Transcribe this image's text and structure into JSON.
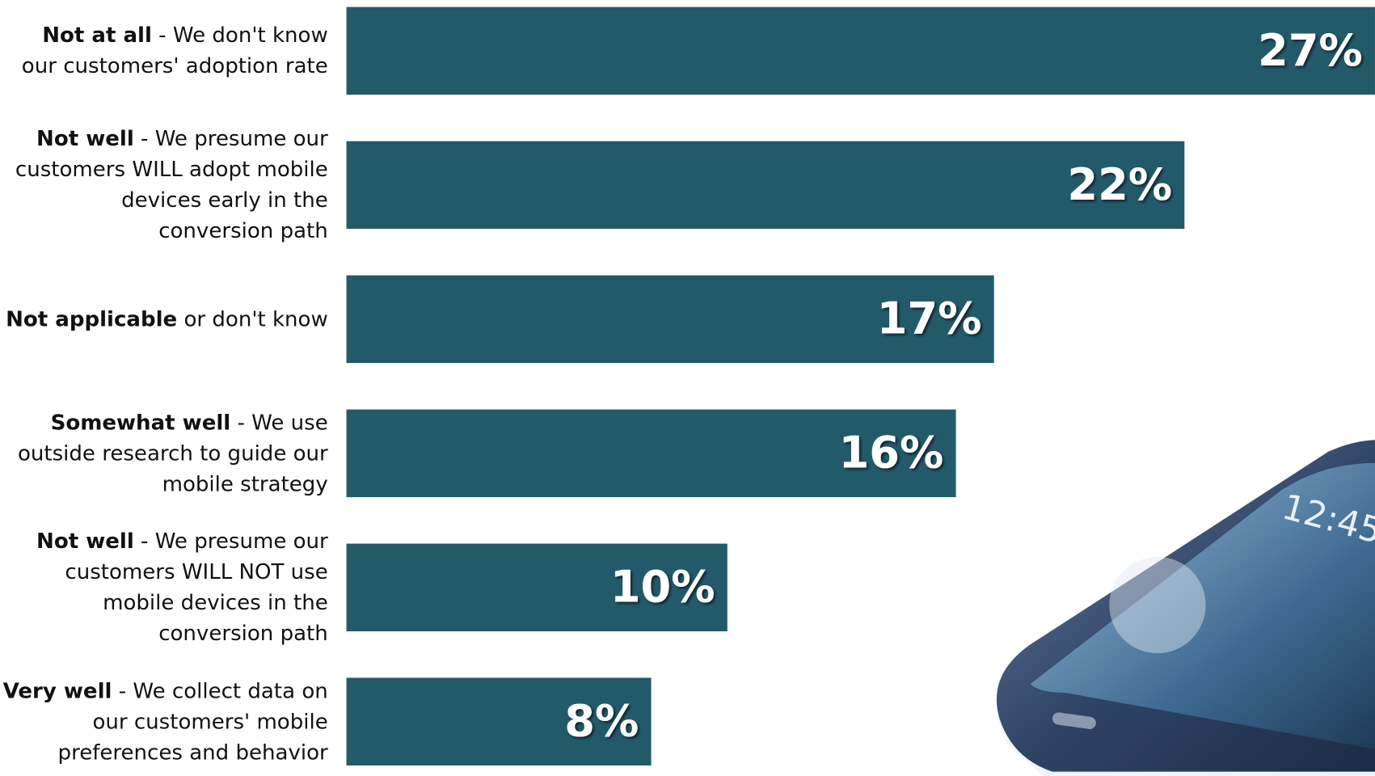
{
  "chart_data": {
    "type": "bar",
    "orientation": "horizontal",
    "color": "#235a6a",
    "categories": [
      {
        "strong": "Not at all",
        "rest": " - We don't know our customers' adoption rate"
      },
      {
        "strong": "Not well",
        "rest": " - We presume our customers WILL adopt mobile devices early in the conversion path"
      },
      {
        "strong": "Not applicable",
        "rest": " or don't know"
      },
      {
        "strong": "Somewhat well",
        "rest": " - We use outside research to guide our mobile strategy"
      },
      {
        "strong": "Not well",
        "rest": " - We presume our customers WILL NOT use mobile devices in the conversion path"
      },
      {
        "strong": "Very well",
        "rest": " - We collect data on our customers' mobile preferences and behavior"
      }
    ],
    "values": [
      27,
      22,
      17,
      16,
      10,
      8
    ],
    "value_labels": [
      "27%",
      "22%",
      "17%",
      "16%",
      "10%",
      "8%"
    ]
  }
}
